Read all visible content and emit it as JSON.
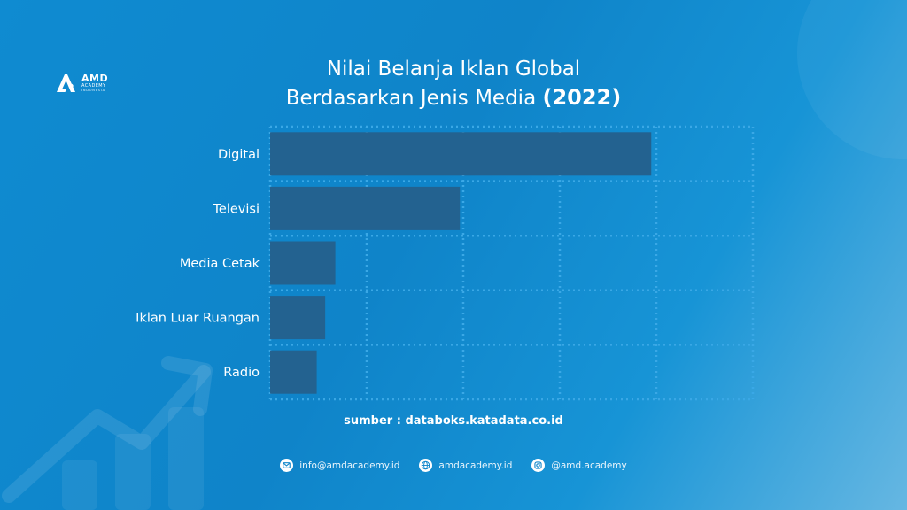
{
  "brand": {
    "name": "AMD",
    "sub": "ACADEMY",
    "sub2": "INDONESIA"
  },
  "chart_data": {
    "type": "bar",
    "orientation": "horizontal",
    "title_line1": "Nilai Belanja Iklan Global",
    "title_line2": "Berdasarkan Jenis Media",
    "title_year": "(2022)",
    "categories": [
      "Digital",
      "Televisi",
      "Media Cetak",
      "Iklan Luar Ruangan",
      "Radio"
    ],
    "values": [
      4.5,
      2.24,
      0.77,
      0.65,
      0.55
    ],
    "xlim": [
      0,
      5.7
    ],
    "grid": true,
    "axis_tick_labels_shown": false,
    "bar_color": "#236290",
    "grid_color": "#3aa8e6"
  },
  "source_text": "sumber : databoks.katadata.co.id",
  "contacts": {
    "email": "info@amdacademy.id",
    "website": "amdacademy.id",
    "instagram": "@amd.academy"
  },
  "icons": [
    "logo-mark",
    "email-icon",
    "globe-icon",
    "instagram-icon",
    "growth-arrow-icon"
  ]
}
